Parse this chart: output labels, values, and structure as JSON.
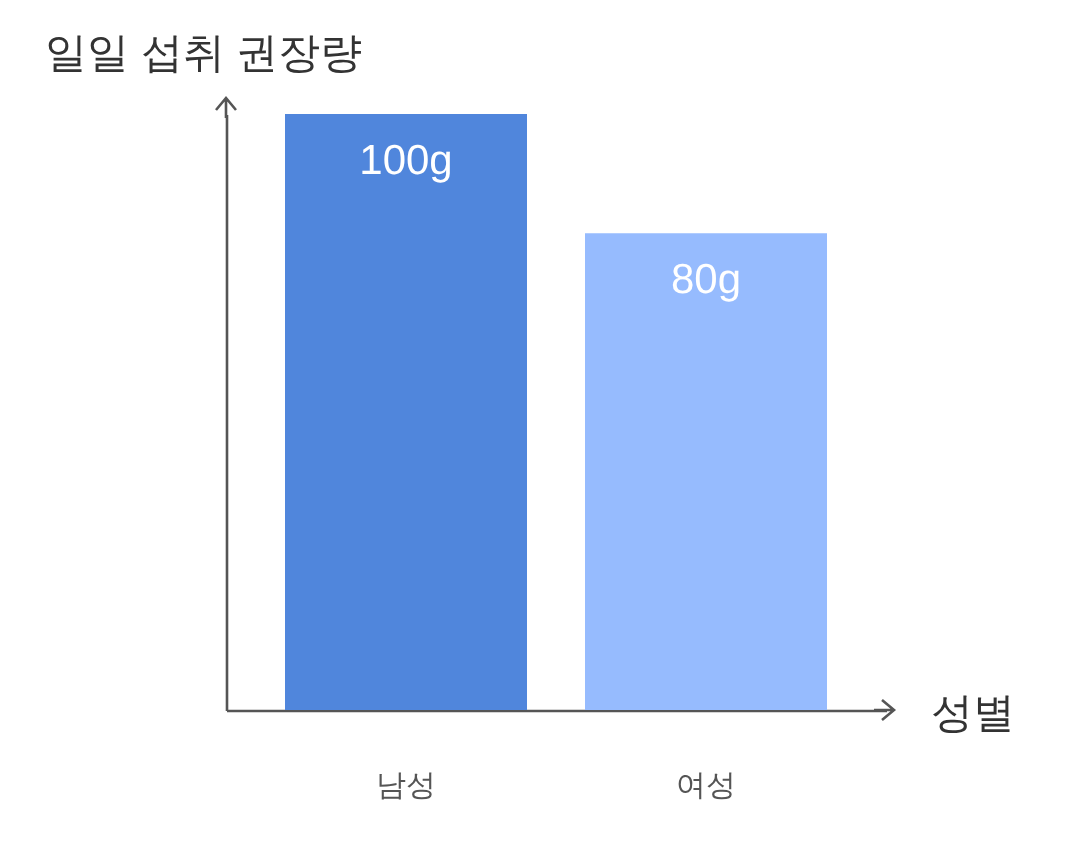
{
  "chart_data": {
    "type": "bar",
    "ylabel": "일일 섭취 권장량",
    "xlabel": "성별",
    "categories": [
      "남성",
      "여성"
    ],
    "values": [
      100,
      80
    ],
    "value_labels": [
      "100g",
      "80g"
    ],
    "colors": [
      "#5086dc",
      "#96bbfe"
    ],
    "tick_labels": "x"
  }
}
